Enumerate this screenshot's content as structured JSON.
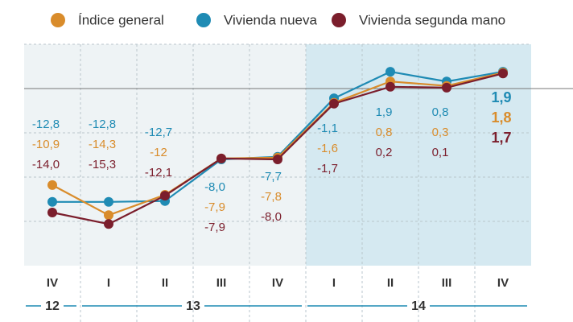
{
  "chart_data": {
    "type": "line",
    "categories": [
      "IV",
      "I",
      "II",
      "III",
      "IV",
      "I",
      "II",
      "III",
      "IV"
    ],
    "groups": [
      "12",
      "13",
      "14"
    ],
    "series": [
      {
        "name": "Vivienda nueva",
        "color": "#1f8bb4",
        "values": [
          -12.8,
          -12.8,
          -12.7,
          -8.0,
          -7.7,
          -1.1,
          1.9,
          0.8,
          1.9
        ],
        "value_labels": [
          "-12,8",
          "-12,8",
          "-12,7",
          "-8,0",
          "-7,7",
          "-1,1",
          "1,9",
          "0,8",
          "1,9"
        ]
      },
      {
        "name": "Índice general",
        "color": "#d98c2b",
        "values": [
          -10.9,
          -14.3,
          -12,
          -7.9,
          -7.8,
          -1.6,
          0.8,
          0.3,
          1.8
        ],
        "value_labels": [
          "-10,9",
          "-14,3",
          "-12",
          "-7,9",
          "-7,8",
          "-1,6",
          "0,8",
          "0,3",
          "1,8"
        ]
      },
      {
        "name": "Vivienda segunda mano",
        "color": "#7b1e2c",
        "values": [
          -14.0,
          -15.3,
          -12.1,
          -7.9,
          -8.0,
          -1.7,
          0.2,
          0.1,
          1.7
        ],
        "value_labels": [
          "-14,0",
          "-15,3",
          "-12,1",
          "-7,9",
          "-8,0",
          "-1,7",
          "0,2",
          "0,1",
          "1,7"
        ]
      }
    ],
    "legend_order": [
      1,
      0,
      2
    ],
    "ylim": [
      -20,
      5
    ],
    "yticks": [
      5,
      0,
      -5,
      -10,
      -15
    ],
    "grid": true
  }
}
